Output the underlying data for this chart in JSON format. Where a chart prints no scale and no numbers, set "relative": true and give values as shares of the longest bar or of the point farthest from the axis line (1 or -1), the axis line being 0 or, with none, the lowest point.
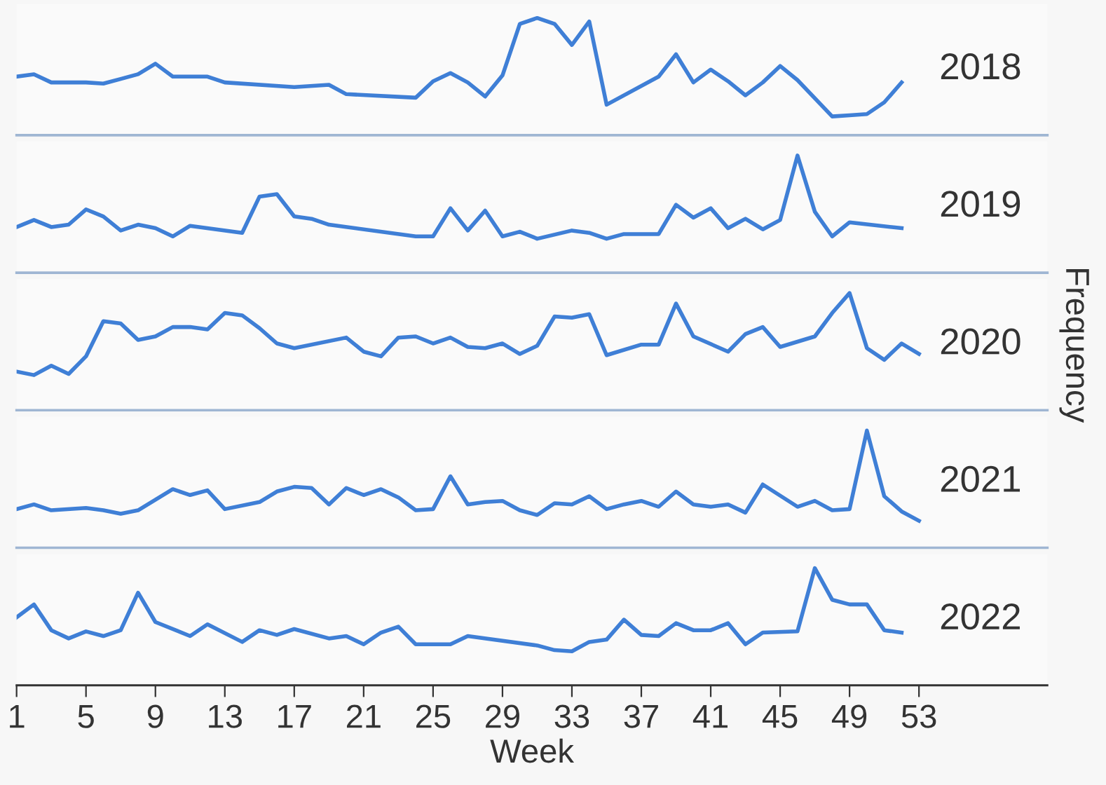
{
  "chart_data": [
    {
      "type": "line",
      "relative": true,
      "tick_labels": false,
      "xlim": [
        1,
        60.4
      ],
      "color": "#3f7fd6",
      "series": [
        {
          "name": "2018",
          "x": [
            1,
            2,
            3,
            4,
            5,
            6,
            7,
            8,
            9,
            10,
            11,
            12,
            13,
            17,
            19,
            20,
            24,
            25,
            26,
            27,
            28,
            29,
            30,
            31,
            32,
            33,
            34,
            35,
            38,
            39,
            40,
            41,
            42,
            43,
            44,
            45,
            46,
            48,
            49,
            50,
            51,
            52
          ],
          "values": [
            0.5,
            0.52,
            0.45,
            0.45,
            0.45,
            0.44,
            0.48,
            0.52,
            0.61,
            0.5,
            0.5,
            0.5,
            0.45,
            0.41,
            0.43,
            0.35,
            0.32,
            0.46,
            0.53,
            0.45,
            0.33,
            0.51,
            0.95,
            1,
            0.95,
            0.77,
            0.97,
            0.26,
            0.5,
            0.69,
            0.45,
            0.56,
            0.46,
            0.34,
            0.45,
            0.59,
            0.47,
            0.16,
            0.17,
            0.18,
            0.28,
            0.45
          ]
        }
      ]
    },
    {
      "type": "line",
      "relative": true,
      "tick_labels": false,
      "xlim": [
        1,
        60.4
      ],
      "color": "#3f7fd6",
      "series": [
        {
          "name": "2019",
          "x": [
            1,
            2,
            3,
            4,
            5,
            6,
            7,
            8,
            9,
            10,
            11,
            14,
            15,
            16,
            17,
            18,
            19,
            24,
            25,
            26,
            27,
            28,
            29,
            30,
            31,
            33,
            34,
            35,
            36,
            38,
            39,
            40,
            41,
            42,
            43,
            44,
            45,
            46,
            47,
            48,
            49,
            52
          ],
          "values": [
            0.39,
            0.45,
            0.39,
            0.41,
            0.54,
            0.48,
            0.36,
            0.41,
            0.38,
            0.31,
            0.4,
            0.34,
            0.65,
            0.67,
            0.48,
            0.46,
            0.41,
            0.31,
            0.31,
            0.55,
            0.36,
            0.53,
            0.31,
            0.35,
            0.29,
            0.36,
            0.34,
            0.29,
            0.33,
            0.33,
            0.58,
            0.47,
            0.55,
            0.38,
            0.46,
            0.37,
            0.45,
            1,
            0.52,
            0.31,
            0.43,
            0.38
          ]
        }
      ]
    },
    {
      "type": "line",
      "relative": true,
      "tick_labels": false,
      "xlim": [
        1,
        60.4
      ],
      "color": "#3f7fd6",
      "ylabel": "Frequency",
      "series": [
        {
          "name": "2020",
          "x": [
            1,
            2,
            3,
            4,
            5,
            6,
            7,
            8,
            9,
            10,
            11,
            12,
            13,
            14,
            15,
            16,
            17,
            20,
            21,
            22,
            23,
            24,
            25,
            26,
            27,
            28,
            29,
            30,
            31,
            32,
            33,
            34,
            35,
            37,
            38,
            39,
            40,
            42,
            43,
            44,
            45,
            47,
            48,
            49,
            50,
            51,
            52,
            53
          ],
          "values": [
            0.33,
            0.3,
            0.38,
            0.31,
            0.46,
            0.76,
            0.74,
            0.6,
            0.63,
            0.71,
            0.71,
            0.69,
            0.83,
            0.81,
            0.7,
            0.57,
            0.53,
            0.62,
            0.5,
            0.46,
            0.62,
            0.63,
            0.57,
            0.62,
            0.54,
            0.53,
            0.57,
            0.48,
            0.55,
            0.8,
            0.79,
            0.82,
            0.47,
            0.56,
            0.56,
            0.91,
            0.63,
            0.5,
            0.65,
            0.71,
            0.54,
            0.63,
            0.83,
            1,
            0.53,
            0.43,
            0.57,
            0.48
          ]
        }
      ]
    },
    {
      "type": "line",
      "relative": true,
      "tick_labels": false,
      "xlim": [
        1,
        60.4
      ],
      "color": "#3f7fd6",
      "series": [
        {
          "name": "2021",
          "x": [
            1,
            2,
            3,
            5,
            6,
            7,
            8,
            10,
            11,
            12,
            13,
            15,
            16,
            17,
            18,
            19,
            20,
            21,
            22,
            23,
            24,
            25,
            26,
            27,
            28,
            29,
            30,
            31,
            32,
            33,
            34,
            35,
            36,
            37,
            38,
            39,
            40,
            41,
            42,
            43,
            44,
            46,
            47,
            48,
            49,
            50,
            51,
            52,
            53
          ],
          "values": [
            0.33,
            0.37,
            0.32,
            0.34,
            0.32,
            0.29,
            0.32,
            0.5,
            0.45,
            0.49,
            0.33,
            0.39,
            0.48,
            0.52,
            0.51,
            0.37,
            0.51,
            0.45,
            0.5,
            0.43,
            0.32,
            0.33,
            0.61,
            0.37,
            0.39,
            0.4,
            0.32,
            0.28,
            0.38,
            0.37,
            0.44,
            0.33,
            0.37,
            0.4,
            0.35,
            0.48,
            0.37,
            0.35,
            0.37,
            0.3,
            0.54,
            0.35,
            0.4,
            0.32,
            0.33,
            1,
            0.44,
            0.31,
            0.23
          ]
        }
      ]
    },
    {
      "type": "line",
      "relative": true,
      "tick_labels": "x",
      "xlim": [
        1,
        60.4
      ],
      "xticks": [
        1,
        5,
        9,
        13,
        17,
        21,
        25,
        29,
        33,
        37,
        41,
        45,
        49,
        53
      ],
      "xlabel": "Week",
      "color": "#3f7fd6",
      "series": [
        {
          "name": "2022",
          "x": [
            1,
            2,
            3,
            4,
            5,
            6,
            7,
            8,
            9,
            11,
            12,
            14,
            15,
            16,
            17,
            19,
            20,
            21,
            22,
            23,
            24,
            26,
            27,
            31,
            32,
            33,
            34,
            35,
            36,
            37,
            38,
            39,
            40,
            41,
            42,
            43,
            44,
            46,
            47,
            48,
            49,
            50,
            51,
            52
          ],
          "values": [
            0.58,
            0.69,
            0.47,
            0.4,
            0.46,
            0.42,
            0.47,
            0.79,
            0.54,
            0.42,
            0.52,
            0.37,
            0.47,
            0.43,
            0.48,
            0.4,
            0.42,
            0.35,
            0.45,
            0.5,
            0.35,
            0.35,
            0.42,
            0.34,
            0.3,
            0.29,
            0.37,
            0.39,
            0.56,
            0.43,
            0.42,
            0.53,
            0.47,
            0.47,
            0.53,
            0.35,
            0.45,
            0.46,
            1,
            0.73,
            0.69,
            0.69,
            0.47,
            0.45
          ]
        }
      ]
    }
  ]
}
